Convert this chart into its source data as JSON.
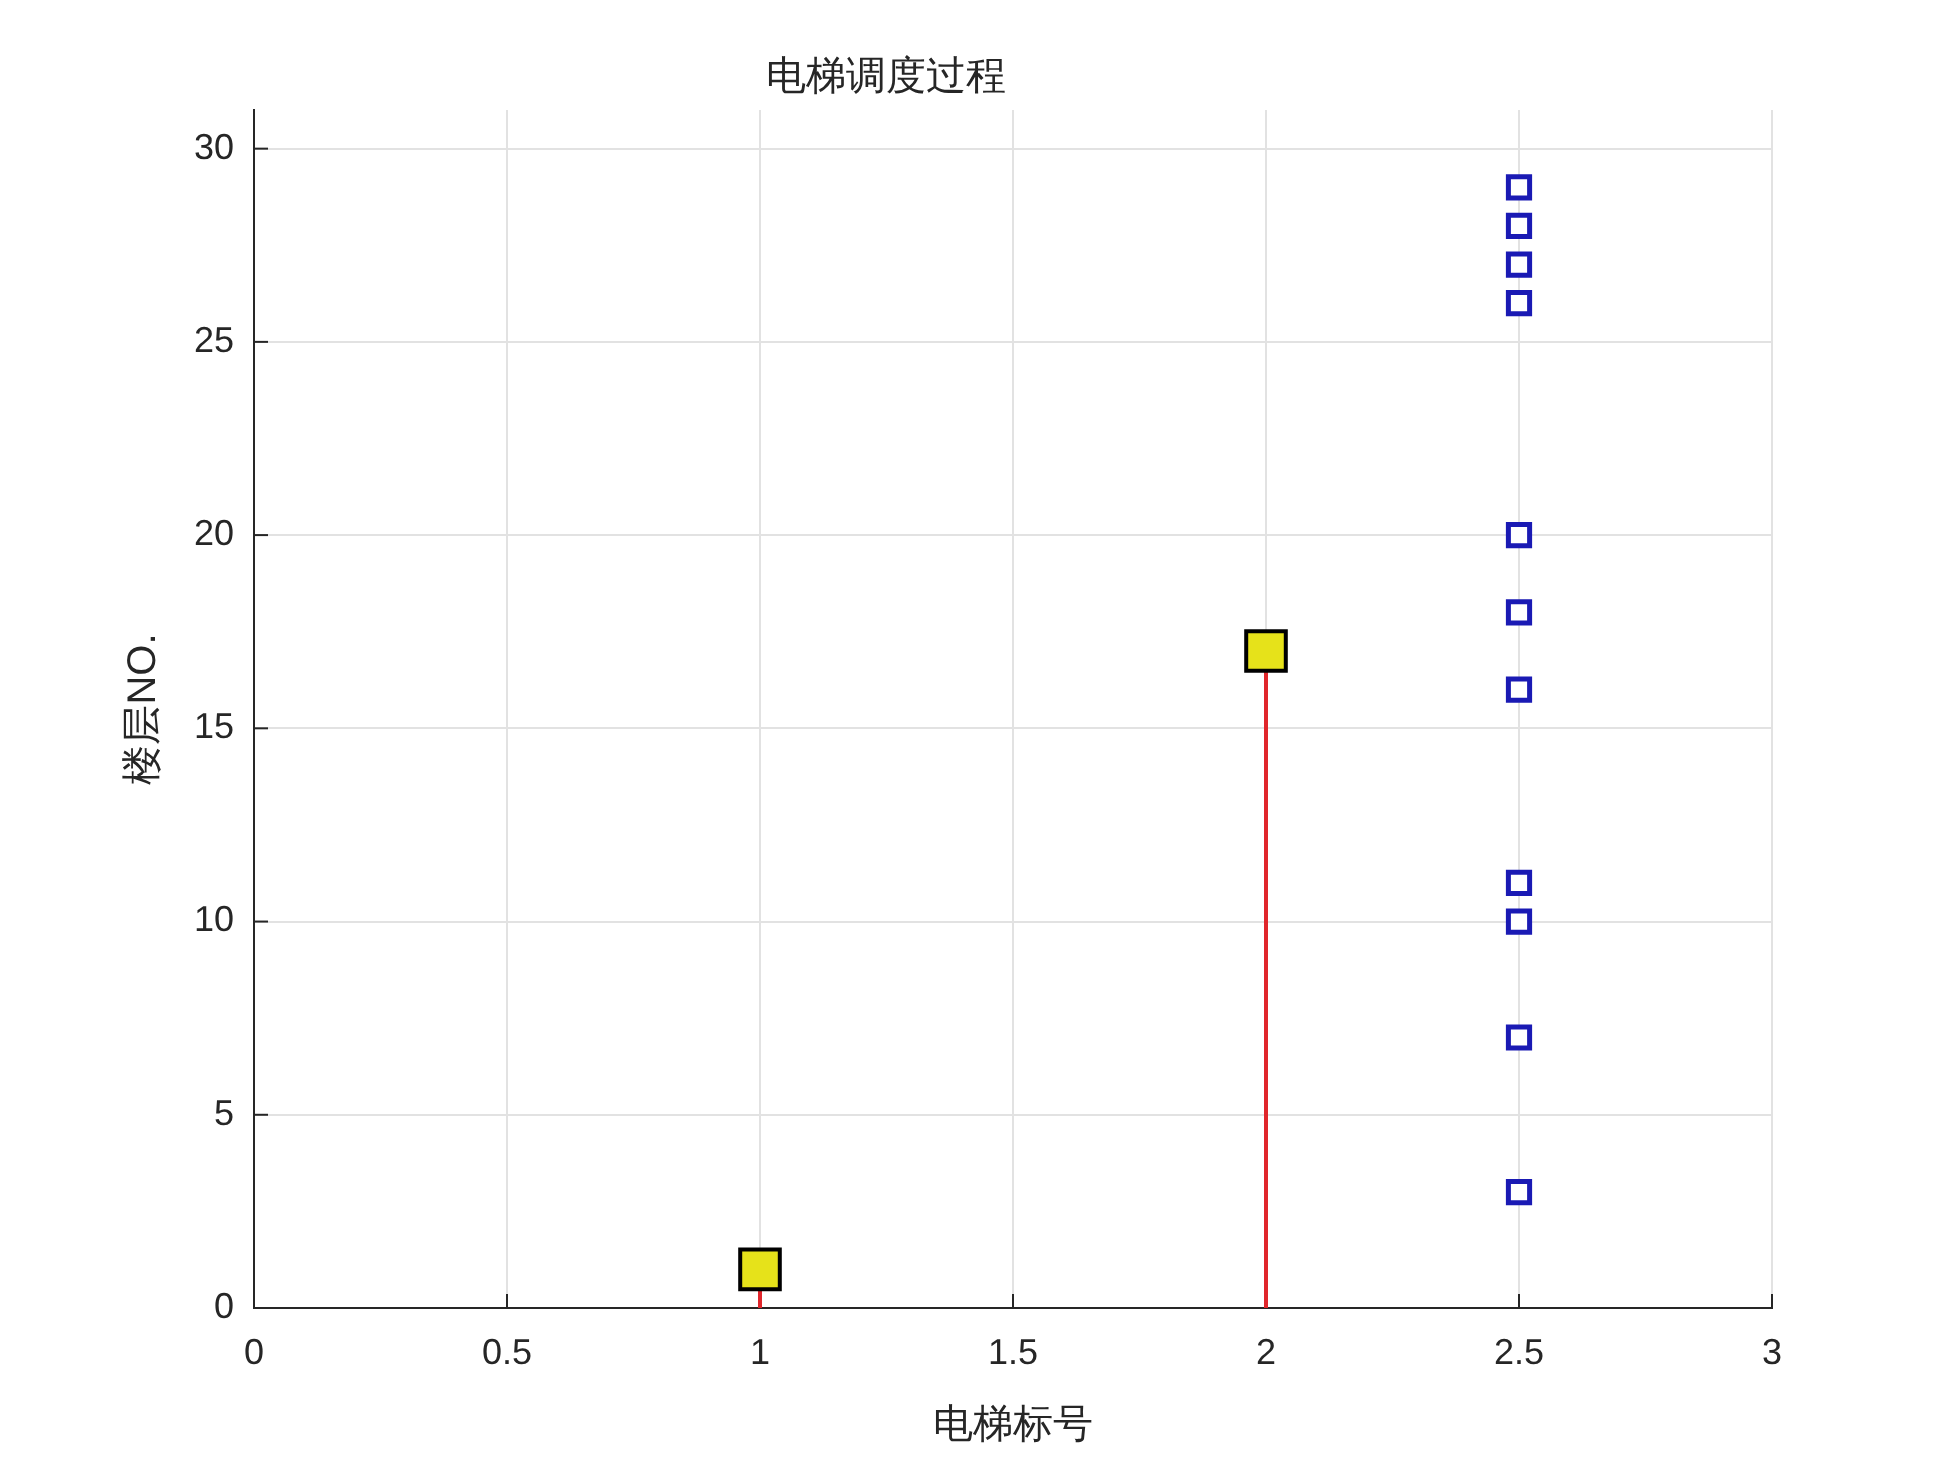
{
  "chart_data": {
    "type": "scatter",
    "title": "电梯调度过程",
    "xlabel": "电梯标号",
    "ylabel": "楼层NO.",
    "xlim": [
      0,
      3
    ],
    "xticks": [
      0,
      0.5,
      1,
      1.5,
      2,
      2.5,
      3
    ],
    "ylim": [
      0,
      31
    ],
    "yticks": [
      0,
      5,
      10,
      15,
      20,
      25,
      30
    ],
    "grid": true,
    "series": [
      {
        "type": "lollipop",
        "x": [
          1,
          2
        ],
        "values": [
          1,
          17
        ],
        "color": "#e6e21a",
        "marker": "square"
      },
      {
        "x": [
          2.5,
          2.5,
          2.5,
          2.5,
          2.5,
          2.5,
          2.5,
          2.5,
          2.5,
          2.5,
          2.5
        ],
        "values": [
          3,
          7,
          10,
          11,
          16,
          18,
          20,
          26,
          27,
          28,
          29
        ],
        "color": "#1a1ab4",
        "marker": "square"
      }
    ]
  }
}
